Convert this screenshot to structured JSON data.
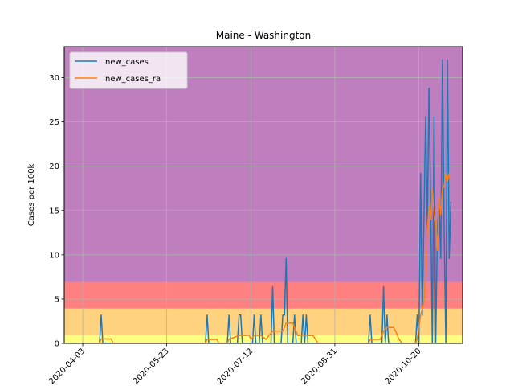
{
  "chart_data": {
    "type": "line",
    "title": "Maine - Washington",
    "xlabel": "",
    "ylabel": "Cases per 100k",
    "ylim": [
      0,
      33.5
    ],
    "xlim": [
      "2020-03-23",
      "2020-11-15"
    ],
    "x_ticks": [
      "2020-04-03",
      "2020-05-23",
      "2020-07-12",
      "2020-08-31",
      "2020-10-20"
    ],
    "y_ticks": [
      0,
      5,
      10,
      15,
      20,
      25,
      30
    ],
    "grid": true,
    "legend_position": "top-left",
    "risk_bands": [
      {
        "from": 0,
        "to": 1,
        "color": "#ffff80"
      },
      {
        "from": 1,
        "to": 4,
        "color": "#ffd280"
      },
      {
        "from": 4,
        "to": 7,
        "color": "#ff8080"
      },
      {
        "from": 7,
        "to": 33.5,
        "color": "#bf7fbf"
      }
    ],
    "series": [
      {
        "name": "new_cases",
        "color": "#1f77b4",
        "points": [
          [
            "2020-04-03",
            0
          ],
          [
            "2020-04-13",
            0
          ],
          [
            "2020-04-14",
            3.2
          ],
          [
            "2020-04-15",
            0
          ],
          [
            "2020-06-15",
            0
          ],
          [
            "2020-06-16",
            3.2
          ],
          [
            "2020-06-17",
            0
          ],
          [
            "2020-06-28",
            0
          ],
          [
            "2020-06-29",
            3.2
          ],
          [
            "2020-06-30",
            0
          ],
          [
            "2020-07-04",
            0
          ],
          [
            "2020-07-05",
            3.2
          ],
          [
            "2020-07-06",
            3.2
          ],
          [
            "2020-07-07",
            0
          ],
          [
            "2020-07-13",
            0
          ],
          [
            "2020-07-14",
            3.2
          ],
          [
            "2020-07-15",
            0
          ],
          [
            "2020-07-17",
            0
          ],
          [
            "2020-07-18",
            3.2
          ],
          [
            "2020-07-19",
            0
          ],
          [
            "2020-07-24",
            0
          ],
          [
            "2020-07-25",
            6.4
          ],
          [
            "2020-07-26",
            0
          ],
          [
            "2020-07-30",
            0
          ],
          [
            "2020-07-31",
            3.2
          ],
          [
            "2020-08-01",
            3.2
          ],
          [
            "2020-08-02",
            9.6
          ],
          [
            "2020-08-03",
            0
          ],
          [
            "2020-08-06",
            0
          ],
          [
            "2020-08-07",
            3.2
          ],
          [
            "2020-08-08",
            0
          ],
          [
            "2020-08-11",
            0
          ],
          [
            "2020-08-12",
            3.2
          ],
          [
            "2020-08-13",
            0
          ],
          [
            "2020-08-14",
            3.2
          ],
          [
            "2020-08-15",
            0
          ],
          [
            "2020-09-20",
            0
          ],
          [
            "2020-09-21",
            3.2
          ],
          [
            "2020-09-22",
            0
          ],
          [
            "2020-09-28",
            0
          ],
          [
            "2020-09-29",
            6.4
          ],
          [
            "2020-09-30",
            0
          ],
          [
            "2020-10-01",
            3.2
          ],
          [
            "2020-10-02",
            0
          ],
          [
            "2020-10-18",
            0
          ],
          [
            "2020-10-19",
            3.2
          ],
          [
            "2020-10-20",
            0
          ],
          [
            "2020-10-21",
            19.2
          ],
          [
            "2020-10-22",
            3.2
          ],
          [
            "2020-10-24",
            25.6
          ],
          [
            "2020-10-25",
            12.8
          ],
          [
            "2020-10-26",
            28.8
          ],
          [
            "2020-10-27",
            16
          ],
          [
            "2020-10-28",
            0
          ],
          [
            "2020-10-29",
            25.6
          ],
          [
            "2020-10-30",
            0
          ],
          [
            "2020-10-31",
            12.8
          ],
          [
            "2020-11-01",
            16
          ],
          [
            "2020-11-02",
            9.6
          ],
          [
            "2020-11-03",
            32
          ],
          [
            "2020-11-04",
            12.8
          ],
          [
            "2020-11-05",
            0
          ],
          [
            "2020-11-06",
            32
          ],
          [
            "2020-11-07",
            9.6
          ],
          [
            "2020-11-08",
            16
          ]
        ]
      },
      {
        "name": "new_cases_ra",
        "color": "#ff7f0e",
        "points": [
          [
            "2020-04-03",
            0
          ],
          [
            "2020-04-13",
            0
          ],
          [
            "2020-04-14",
            0.5
          ],
          [
            "2020-04-20",
            0.5
          ],
          [
            "2020-04-21",
            0
          ],
          [
            "2020-06-15",
            0
          ],
          [
            "2020-06-16",
            0.45
          ],
          [
            "2020-06-22",
            0.45
          ],
          [
            "2020-06-23",
            0
          ],
          [
            "2020-06-28",
            0
          ],
          [
            "2020-06-29",
            0.45
          ],
          [
            "2020-07-05",
            0.9
          ],
          [
            "2020-07-11",
            0.9
          ],
          [
            "2020-07-12",
            0.45
          ],
          [
            "2020-07-14",
            0.9
          ],
          [
            "2020-07-18",
            0.9
          ],
          [
            "2020-07-21",
            0.45
          ],
          [
            "2020-07-25",
            1.4
          ],
          [
            "2020-07-31",
            1.4
          ],
          [
            "2020-08-01",
            1.8
          ],
          [
            "2020-08-02",
            2.3
          ],
          [
            "2020-08-06",
            2.3
          ],
          [
            "2020-08-07",
            1.8
          ],
          [
            "2020-08-09",
            0.9
          ],
          [
            "2020-08-12",
            0.9
          ],
          [
            "2020-08-14",
            0.9
          ],
          [
            "2020-08-18",
            0.9
          ],
          [
            "2020-08-21",
            0
          ],
          [
            "2020-09-20",
            0
          ],
          [
            "2020-09-21",
            0.45
          ],
          [
            "2020-09-27",
            0.45
          ],
          [
            "2020-09-29",
            1.4
          ],
          [
            "2020-10-01",
            1.8
          ],
          [
            "2020-10-05",
            1.8
          ],
          [
            "2020-10-07",
            1.0
          ],
          [
            "2020-10-08",
            0.5
          ],
          [
            "2020-10-10",
            0
          ],
          [
            "2020-10-18",
            0
          ],
          [
            "2020-10-19",
            0.5
          ],
          [
            "2020-10-21",
            3.2
          ],
          [
            "2020-10-23",
            4.6
          ],
          [
            "2020-10-24",
            8.2
          ],
          [
            "2020-10-25",
            12.8
          ],
          [
            "2020-10-26",
            15.5
          ],
          [
            "2020-10-27",
            14
          ],
          [
            "2020-10-28",
            17.4
          ],
          [
            "2020-10-29",
            14.6
          ],
          [
            "2020-10-30",
            13.7
          ],
          [
            "2020-10-31",
            10.5
          ],
          [
            "2020-11-01",
            16.4
          ],
          [
            "2020-11-02",
            14.6
          ],
          [
            "2020-11-03",
            17.4
          ],
          [
            "2020-11-04",
            17.8
          ],
          [
            "2020-11-05",
            19.2
          ],
          [
            "2020-11-06",
            18.3
          ],
          [
            "2020-11-07",
            19.2
          ]
        ]
      }
    ]
  }
}
